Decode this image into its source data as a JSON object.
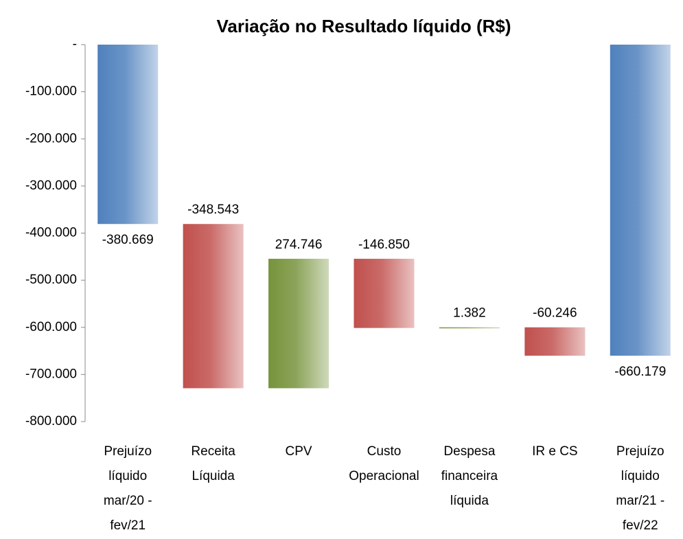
{
  "chart_data": {
    "type": "waterfall",
    "title": "Variação no Resultado líquido (R$)",
    "categories": [
      "Prejuízo líquido mar/20 - fev/21",
      "Receita Líquida",
      "CPV",
      "Custo Operacional",
      "Despesa financeira líquida",
      "IR e CS",
      "Prejuízo líquido mar/21 - fev/22"
    ],
    "values": [
      -380669,
      -348543,
      274746,
      -146850,
      1382,
      -60246,
      -660179
    ],
    "value_labels": [
      "-380.669",
      "-348.543",
      "274.746",
      "-146.850",
      "1.382",
      "-60.246",
      "-660.179"
    ],
    "totals": [
      true,
      false,
      false,
      false,
      false,
      false,
      true
    ],
    "colors": [
      "#4f81bd",
      "#c0504d",
      "#77933c",
      "#c0504d",
      "#77933c",
      "#c0504d",
      "#4f81bd"
    ],
    "ylim": [
      -800000,
      0
    ],
    "yticks": [
      {
        "value": 0,
        "label": "-"
      },
      {
        "value": -100000,
        "label": "-100.000"
      },
      {
        "value": -200000,
        "label": "-200.000"
      },
      {
        "value": -300000,
        "label": "-300.000"
      },
      {
        "value": -400000,
        "label": "-400.000"
      },
      {
        "value": -500000,
        "label": "-500.000"
      },
      {
        "value": -600000,
        "label": "-600.000"
      },
      {
        "value": -700000,
        "label": "-700.000"
      },
      {
        "value": -800000,
        "label": "-800.000"
      }
    ]
  }
}
